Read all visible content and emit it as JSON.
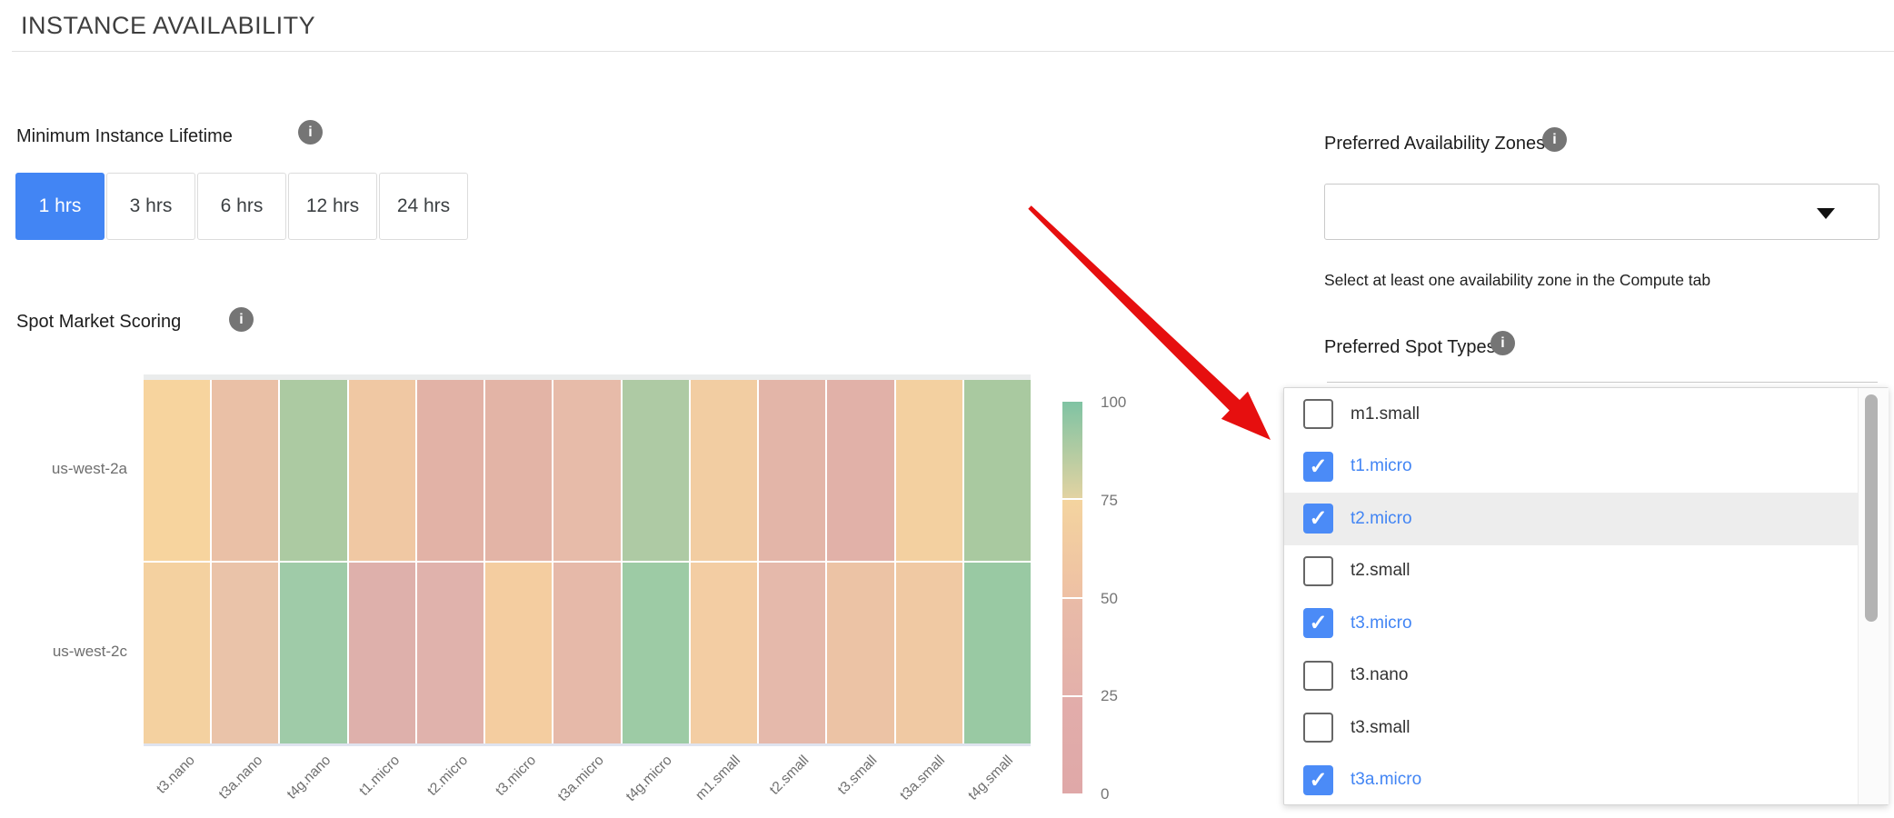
{
  "page": {
    "title": "INSTANCE AVAILABILITY"
  },
  "lifetime": {
    "label": "Minimum Instance Lifetime",
    "options": [
      "1 hrs",
      "3 hrs",
      "6 hrs",
      "12 hrs",
      "24 hrs"
    ],
    "selected": "1 hrs"
  },
  "scoring": {
    "label": "Spot Market Scoring"
  },
  "chart_data": {
    "type": "heatmap",
    "title": "Spot Market Scoring",
    "categories": [
      "t3.nano",
      "t3a.nano",
      "t4g.nano",
      "t1.micro",
      "t2.micro",
      "t3.micro",
      "t3a.micro",
      "t4g.micro",
      "m1.small",
      "t2.small",
      "t3.small",
      "t3a.small",
      "t4g.small"
    ],
    "rows": [
      "us-west-2a",
      "us-west-2c"
    ],
    "series": [
      {
        "name": "us-west-2a",
        "values": [
          62,
          45,
          82,
          52,
          33,
          35,
          42,
          81,
          55,
          36,
          32,
          58,
          82
        ],
        "colors": [
          "#f7d49e",
          "#eac0a6",
          "#accaa2",
          "#f0c8a3",
          "#e2b2a6",
          "#e3b4a6",
          "#e7bba9",
          "#aecaa4",
          "#f2cda2",
          "#e3b5a8",
          "#e1b1a8",
          "#f3d0a0",
          "#a9c9a0"
        ]
      },
      {
        "name": "us-west-2c",
        "values": [
          60,
          47,
          85,
          28,
          31,
          56,
          40,
          85,
          55,
          40,
          48,
          53,
          87
        ],
        "colors": [
          "#f4d1a0",
          "#eac3a9",
          "#9fcba8",
          "#deb0ab",
          "#e0b2ac",
          "#f4cda0",
          "#e6b9a9",
          "#9dcba5",
          "#f3cda3",
          "#e5b9ab",
          "#ecc3a5",
          "#f0c9a3",
          "#99c9a3"
        ]
      }
    ],
    "colorbar": {
      "ticks": [
        "100",
        "75",
        "50",
        "25",
        "0"
      ],
      "range": [
        0,
        100
      ],
      "segments": [
        [
          "#7fc3a3",
          "#e2d3a2"
        ],
        [
          "#f4d49f",
          "#eec0a4"
        ],
        [
          "#e9bba7",
          "#e3b0aa"
        ],
        [
          "#e2adaa",
          "#dfa8a8"
        ]
      ]
    },
    "legend_position": "right",
    "grid": false
  },
  "availability_zones": {
    "label": "Preferred Availability Zones",
    "selected_value": "",
    "helper": "Select at least one availability zone in the Compute tab"
  },
  "spot_types": {
    "label": "Preferred Spot Types",
    "items": [
      {
        "label": "m1.small",
        "checked": false,
        "highlighted": false
      },
      {
        "label": "t1.micro",
        "checked": true,
        "highlighted": false
      },
      {
        "label": "t2.micro",
        "checked": true,
        "highlighted": true
      },
      {
        "label": "t2.small",
        "checked": false,
        "highlighted": false
      },
      {
        "label": "t3.micro",
        "checked": true,
        "highlighted": false
      },
      {
        "label": "t3.nano",
        "checked": false,
        "highlighted": false
      },
      {
        "label": "t3.small",
        "checked": false,
        "highlighted": false
      },
      {
        "label": "t3a.micro",
        "checked": true,
        "highlighted": false
      }
    ],
    "check_glyph": "✓"
  },
  "annotation": {
    "type": "arrow",
    "color": "#e60f0f"
  },
  "colors": {
    "accent_blue": "#4285f4",
    "checkbox_blue": "#4b8bf7",
    "info_gray": "#757575",
    "row_highlight": "#ededed",
    "arrow_red": "#e60f0f"
  }
}
